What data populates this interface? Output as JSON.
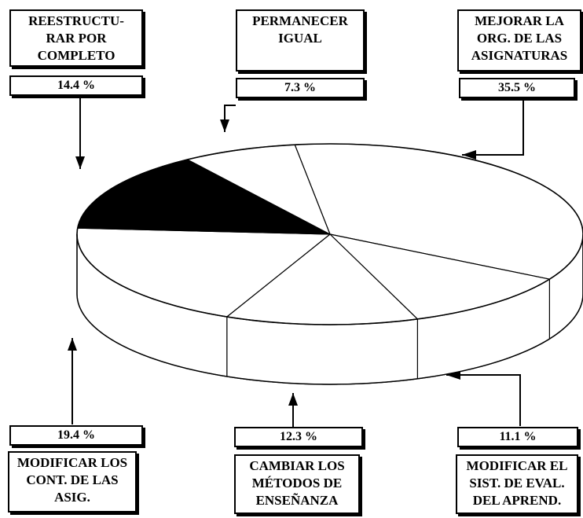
{
  "chart_data": {
    "type": "pie",
    "title": "",
    "categories": [
      "MEJORAR LA ORG. DE LAS ASIGNATURAS",
      "MODIFICAR EL SIST. DE EVAL. DEL APREND.",
      "CAMBIAR LOS MÉTODOS DE ENSEÑANZA",
      "MODIFICAR LOS CONT. DE LAS ASIG.",
      "REESTRUCTURAR POR COMPLETO",
      "PERMANECER IGUAL"
    ],
    "values": [
      35.5,
      11.1,
      12.3,
      19.4,
      14.4,
      7.3
    ],
    "slice_colors": [
      "#ffffff",
      "#ffffff",
      "#ffffff",
      "#ffffff",
      "#000000",
      "#ffffff"
    ],
    "legend": "callout boxes with arrows",
    "grid": false
  },
  "callouts": {
    "reestructurar": {
      "lines": [
        "REESTRUCTU-",
        "RAR POR",
        "COMPLETO"
      ],
      "pct": "14.4 %"
    },
    "permanecer": {
      "lines": [
        "PERMANECER",
        "IGUAL"
      ],
      "pct": "7.3 %"
    },
    "mejorar": {
      "lines": [
        "MEJORAR LA",
        "ORG. DE LAS",
        "ASIGNATURAS"
      ],
      "pct": "35.5 %"
    },
    "modificar_cont": {
      "lines": [
        "MODIFICAR LOS",
        "CONT. DE LAS",
        "ASIG."
      ],
      "pct": "19.4 %"
    },
    "cambiar": {
      "lines": [
        "CAMBIAR LOS",
        "MÉTODOS DE",
        "ENSEÑANZA"
      ],
      "pct": "12.3 %"
    },
    "modificar_eval": {
      "lines": [
        "MODIFICAR EL",
        "SIST. DE EVAL.",
        "DEL APREND."
      ],
      "pct": "11.1 %"
    }
  }
}
